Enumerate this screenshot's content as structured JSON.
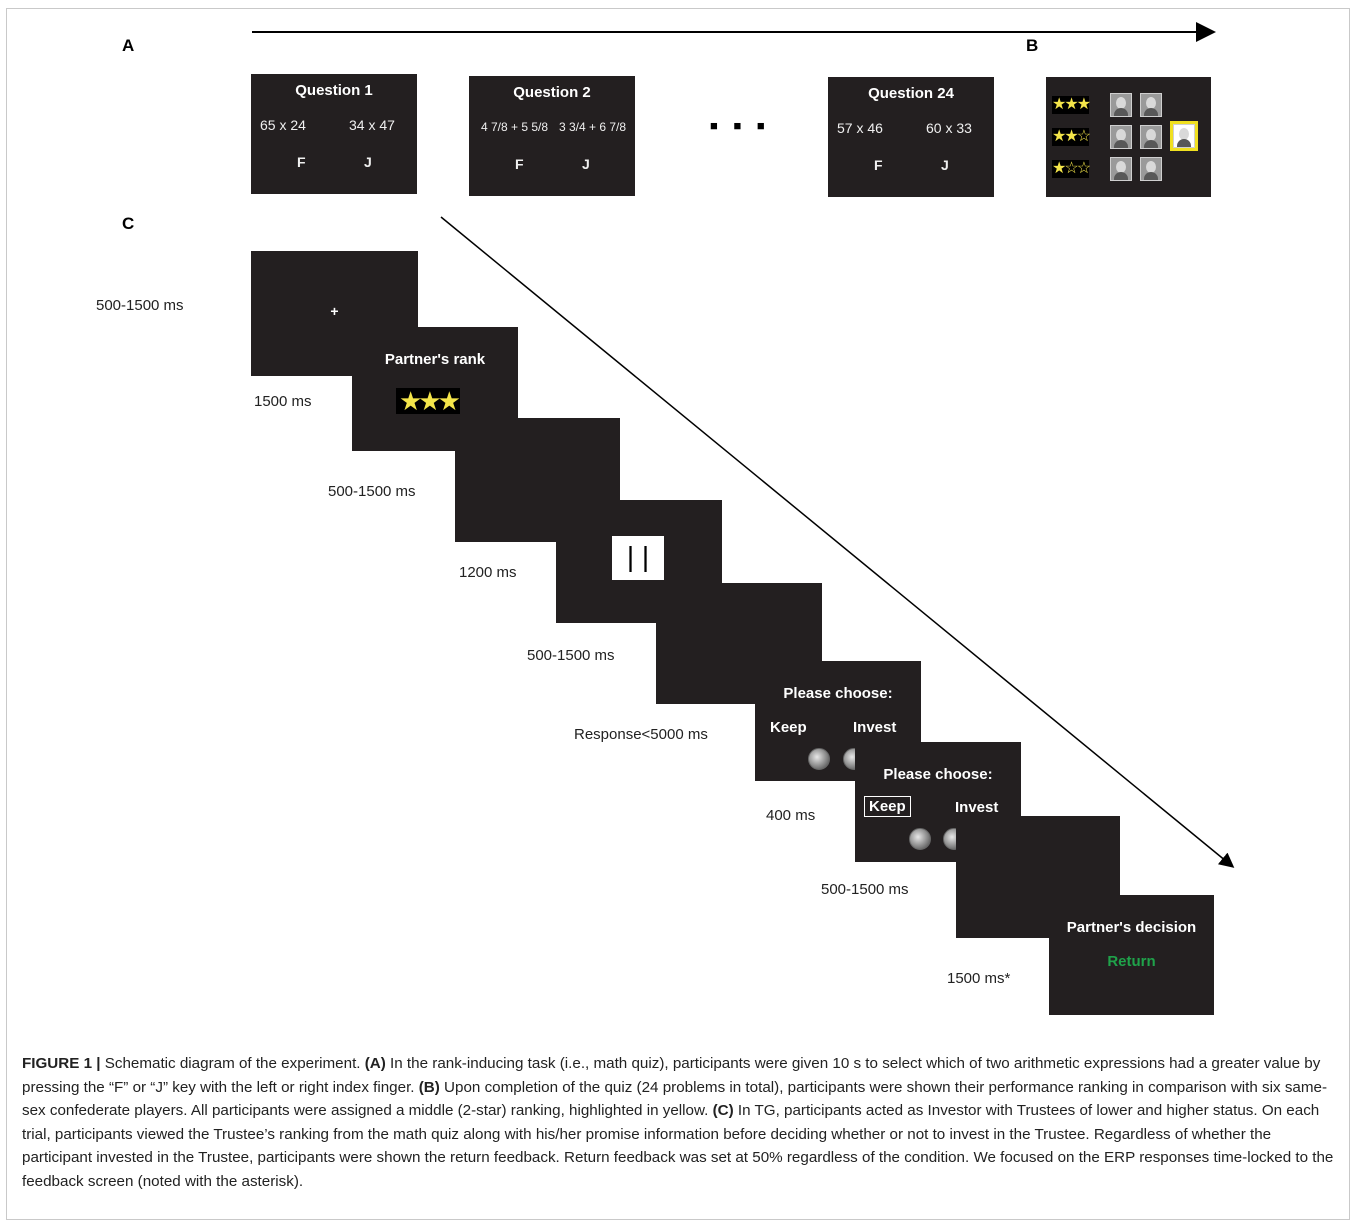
{
  "panel_labels": {
    "a": "A",
    "b": "B",
    "c": "C"
  },
  "panel_a": {
    "questions": [
      {
        "title": "Question 1",
        "left": "65 x 24",
        "right": "34 x 47",
        "key_left": "F",
        "key_right": "J"
      },
      {
        "title": "Question 2",
        "left": "4 7/8 + 5 5/8",
        "right": "3 3/4 + 6 7/8",
        "key_left": "F",
        "key_right": "J"
      },
      {
        "title": "Question 24",
        "left": "57 x 46",
        "right": "60 x 33",
        "key_left": "F",
        "key_right": "J"
      }
    ],
    "ellipsis": "■ ■ ■"
  },
  "panel_b": {
    "rows": [
      {
        "stars": "★★★",
        "faces": 2
      },
      {
        "stars": "★★☆",
        "faces": 2,
        "highlighted_face": true
      },
      {
        "stars": "★☆☆",
        "faces": 2
      }
    ],
    "highlight_color": "#f0e020"
  },
  "panel_c": {
    "screens": [
      {
        "content": "+",
        "duration": "500-1500 ms"
      },
      {
        "content": "Partner's rank",
        "stars": "★★★",
        "duration": "1500 ms"
      },
      {
        "content": "",
        "duration": "500-1500 ms"
      },
      {
        "content": "| |",
        "duration": "1200 ms"
      },
      {
        "content": "",
        "duration": "500-1500 ms"
      },
      {
        "content": "Please choose:",
        "options": [
          "Keep",
          "Invest"
        ],
        "duration": "Response<5000 ms"
      },
      {
        "content": "Please choose:",
        "options": [
          "Keep",
          "Invest"
        ],
        "selected": "Keep",
        "duration": "400 ms"
      },
      {
        "content": "",
        "duration": "500-1500 ms"
      },
      {
        "content": "Partner's decision",
        "feedback": "Return",
        "duration": "1500 ms*"
      }
    ],
    "feedback_color": "#1fa24a"
  },
  "caption": {
    "figure_label": "FIGURE 1 |",
    "title": " Schematic diagram of the experiment. ",
    "a_tag": "(A)",
    "a_text": " In the rank-inducing task (i.e., math quiz), participants were given 10 s to select which of two arithmetic expressions had a greater value by pressing the “F” or “J” key with the left or right index finger. ",
    "b_tag": "(B)",
    "b_text": " Upon completion of the quiz (24 problems in total), participants were shown their performance ranking in comparison with six same-sex confederate players. All participants were assigned a middle (2-star) ranking, highlighted in yellow. ",
    "c_tag": "(C)",
    "c_text": " In TG, participants acted as Investor with Trustees of lower and higher status. On each trial, participants viewed the Trustee’s ranking from the math quiz along with his/her promise information before deciding whether or not to invest in the Trustee. Regardless of whether the participant invested in the Trustee, participants were shown the return feedback. Return feedback was set at 50% regardless of the condition. We focused on the ERP responses time-locked to the feedback screen (noted with the asterisk)."
  }
}
